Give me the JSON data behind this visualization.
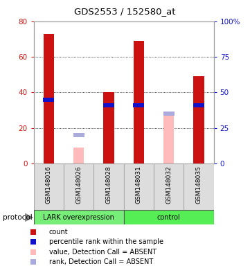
{
  "title": "GDS2553 / 152580_at",
  "samples": [
    "GSM148016",
    "GSM148026",
    "GSM148028",
    "GSM148031",
    "GSM148032",
    "GSM148035"
  ],
  "groups": [
    "LARK overexpression",
    "control"
  ],
  "count_values": [
    73,
    null,
    40,
    69,
    null,
    49
  ],
  "rank_values": [
    45,
    null,
    41,
    41,
    null,
    41
  ],
  "absent_value_values": [
    null,
    9,
    null,
    null,
    29,
    null
  ],
  "absent_rank_values": [
    null,
    20,
    null,
    null,
    35,
    null
  ],
  "ylim_left": [
    0,
    80
  ],
  "ylim_right": [
    0,
    100
  ],
  "yticks_left": [
    0,
    20,
    40,
    60,
    80
  ],
  "yticks_right": [
    0,
    25,
    50,
    75,
    100
  ],
  "ytick_labels_left": [
    "0",
    "20",
    "40",
    "60",
    "80"
  ],
  "ytick_labels_right": [
    "0",
    "25",
    "50",
    "75",
    "100%"
  ],
  "color_count": "#cc1111",
  "color_rank": "#1111cc",
  "color_absent_value": "#ffbbbb",
  "color_absent_rank": "#aaaadd",
  "color_group_lark": "#77ee77",
  "color_group_control": "#55ee55",
  "bar_width": 0.35,
  "rank_marker_size": 5,
  "grid_lines": [
    20,
    40,
    60
  ],
  "legend_items": [
    {
      "label": "count",
      "color": "#cc1111"
    },
    {
      "label": "percentile rank within the sample",
      "color": "#1111cc"
    },
    {
      "label": "value, Detection Call = ABSENT",
      "color": "#ffbbbb"
    },
    {
      "label": "rank, Detection Call = ABSENT",
      "color": "#aaaadd"
    }
  ]
}
